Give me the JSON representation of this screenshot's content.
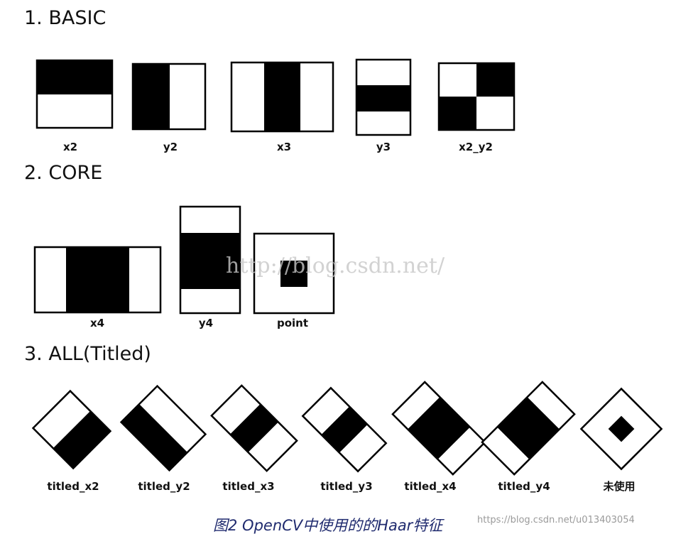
{
  "sections": [
    {
      "title": "1. BASIC",
      "features": [
        "x2",
        "y2",
        "x3",
        "y3",
        "x2_y2"
      ]
    },
    {
      "title": "2. CORE",
      "features": [
        "x4",
        "y4",
        "point"
      ]
    },
    {
      "title": "3. ALL(Titled)",
      "features": [
        "titled_x2",
        "titled_y2",
        "titled_x3",
        "titled_y3",
        "titled_x4",
        "titled_y4",
        "未使用"
      ]
    }
  ],
  "watermark": "http://blog.csdn.net/",
  "caption": "图2 OpenCV中使用的的Haar特征",
  "caption_watermark": "https://blog.csdn.net/u013403054"
}
